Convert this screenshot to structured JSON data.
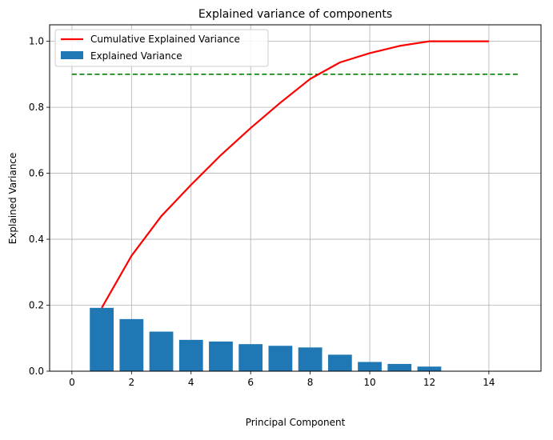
{
  "chart_data": {
    "type": "bar",
    "title": "Explained variance of components",
    "xlabel": "Principal Component",
    "ylabel": "Explained Variance",
    "xlim": [
      -0.75,
      15.75
    ],
    "ylim": [
      0,
      1.05
    ],
    "xticks": [
      0,
      2,
      4,
      6,
      8,
      10,
      12,
      14
    ],
    "yticks": [
      0.0,
      0.2,
      0.4,
      0.6,
      0.8,
      1.0
    ],
    "grid": true,
    "legend_position": "top-left",
    "series": [
      {
        "name": "Explained Variance",
        "kind": "bar",
        "color": "#1f77b4",
        "x": [
          1,
          2,
          3,
          4,
          5,
          6,
          7,
          8,
          9,
          10,
          11,
          12
        ],
        "values": [
          0.192,
          0.158,
          0.12,
          0.095,
          0.09,
          0.082,
          0.077,
          0.072,
          0.05,
          0.028,
          0.022,
          0.014
        ]
      },
      {
        "name": "Cumulative Explained Variance",
        "kind": "line",
        "color": "#ff0000",
        "x": [
          1,
          2,
          3,
          4,
          5,
          6,
          7,
          8,
          9,
          10,
          11,
          12,
          13,
          14
        ],
        "values": [
          0.192,
          0.35,
          0.47,
          0.565,
          0.655,
          0.737,
          0.814,
          0.886,
          0.936,
          0.964,
          0.986,
          1.0,
          1.0,
          1.0
        ]
      }
    ],
    "reference_line": {
      "y": 0.9,
      "x_range": [
        0,
        15
      ],
      "color": "#008000",
      "style": "dashed"
    }
  }
}
